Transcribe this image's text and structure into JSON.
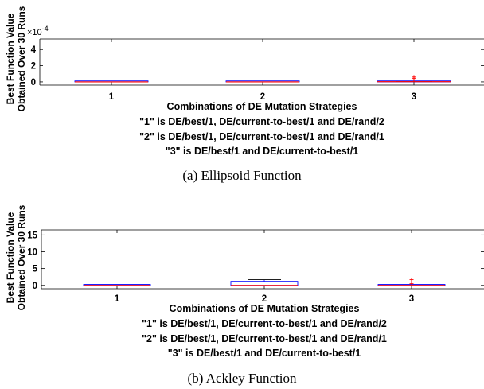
{
  "chart_data": [
    {
      "type": "boxplot",
      "ylabel_lines": [
        "Best Function Value",
        "Obtained Over 30 Runs"
      ],
      "y_multiplier_base": "×10",
      "y_multiplier_exp": "-4",
      "ylim": [
        -0.4,
        5.3
      ],
      "yticks": [
        0,
        2,
        4
      ],
      "categories": [
        "1",
        "2",
        "3"
      ],
      "boxes": [
        {
          "whisker_low": 0,
          "q1": 0,
          "median": 0,
          "q3": 0,
          "whisker_high": 0,
          "outliers": []
        },
        {
          "whisker_low": 0,
          "q1": 0,
          "median": 0,
          "q3": 0,
          "whisker_high": 0,
          "outliers": []
        },
        {
          "whisker_low": 0,
          "q1": 0,
          "median": 0.02,
          "q3": 0.05,
          "whisker_high": 0.1,
          "outliers": [
            0.25,
            0.45,
            0.6
          ]
        }
      ],
      "xlabel_lines": [
        "Combinations of DE Mutation Strategies",
        "\"1\" is DE/best/1, DE/current-to-best/1 and DE/rand/2",
        "\"2\" is DE/best/1, DE/current-to-best/1 and DE/rand/1",
        "\"3\" is DE/best/1 and DE/current-to-best/1"
      ],
      "caption": "(a) Ellipsoid Function"
    },
    {
      "type": "boxplot",
      "ylabel_lines": [
        "Best Function Value",
        "Obtained Over 30 Runs"
      ],
      "ylim": [
        -1,
        16.5
      ],
      "yticks": [
        0,
        5,
        10,
        15
      ],
      "categories": [
        "1",
        "2",
        "3"
      ],
      "boxes": [
        {
          "whisker_low": 0,
          "q1": 0,
          "median": 0,
          "q3": 0,
          "whisker_high": 0,
          "outliers": []
        },
        {
          "whisker_low": 0,
          "q1": 0,
          "median": 0,
          "q3": 1.2,
          "whisker_high": 1.7,
          "outliers": []
        },
        {
          "whisker_low": 0,
          "q1": 0,
          "median": 0,
          "q3": 0,
          "whisker_high": 0,
          "outliers": [
            0.5,
            1.0,
            1.7
          ]
        }
      ],
      "xlabel_lines": [
        "Combinations of DE Mutation Strategies",
        "\"1\" is DE/best/1, DE/current-to-best/1 and DE/rand/2",
        "\"2\" is DE/best/1, DE/current-to-best/1 and DE/rand/1",
        "\"3\" is DE/best/1 and DE/current-to-best/1"
      ],
      "caption": "(b) Ackley Function"
    }
  ],
  "colors": {
    "box": "#0000ff",
    "median": "#ff0000",
    "outlier": "#ff0000",
    "axis": "#000000"
  }
}
